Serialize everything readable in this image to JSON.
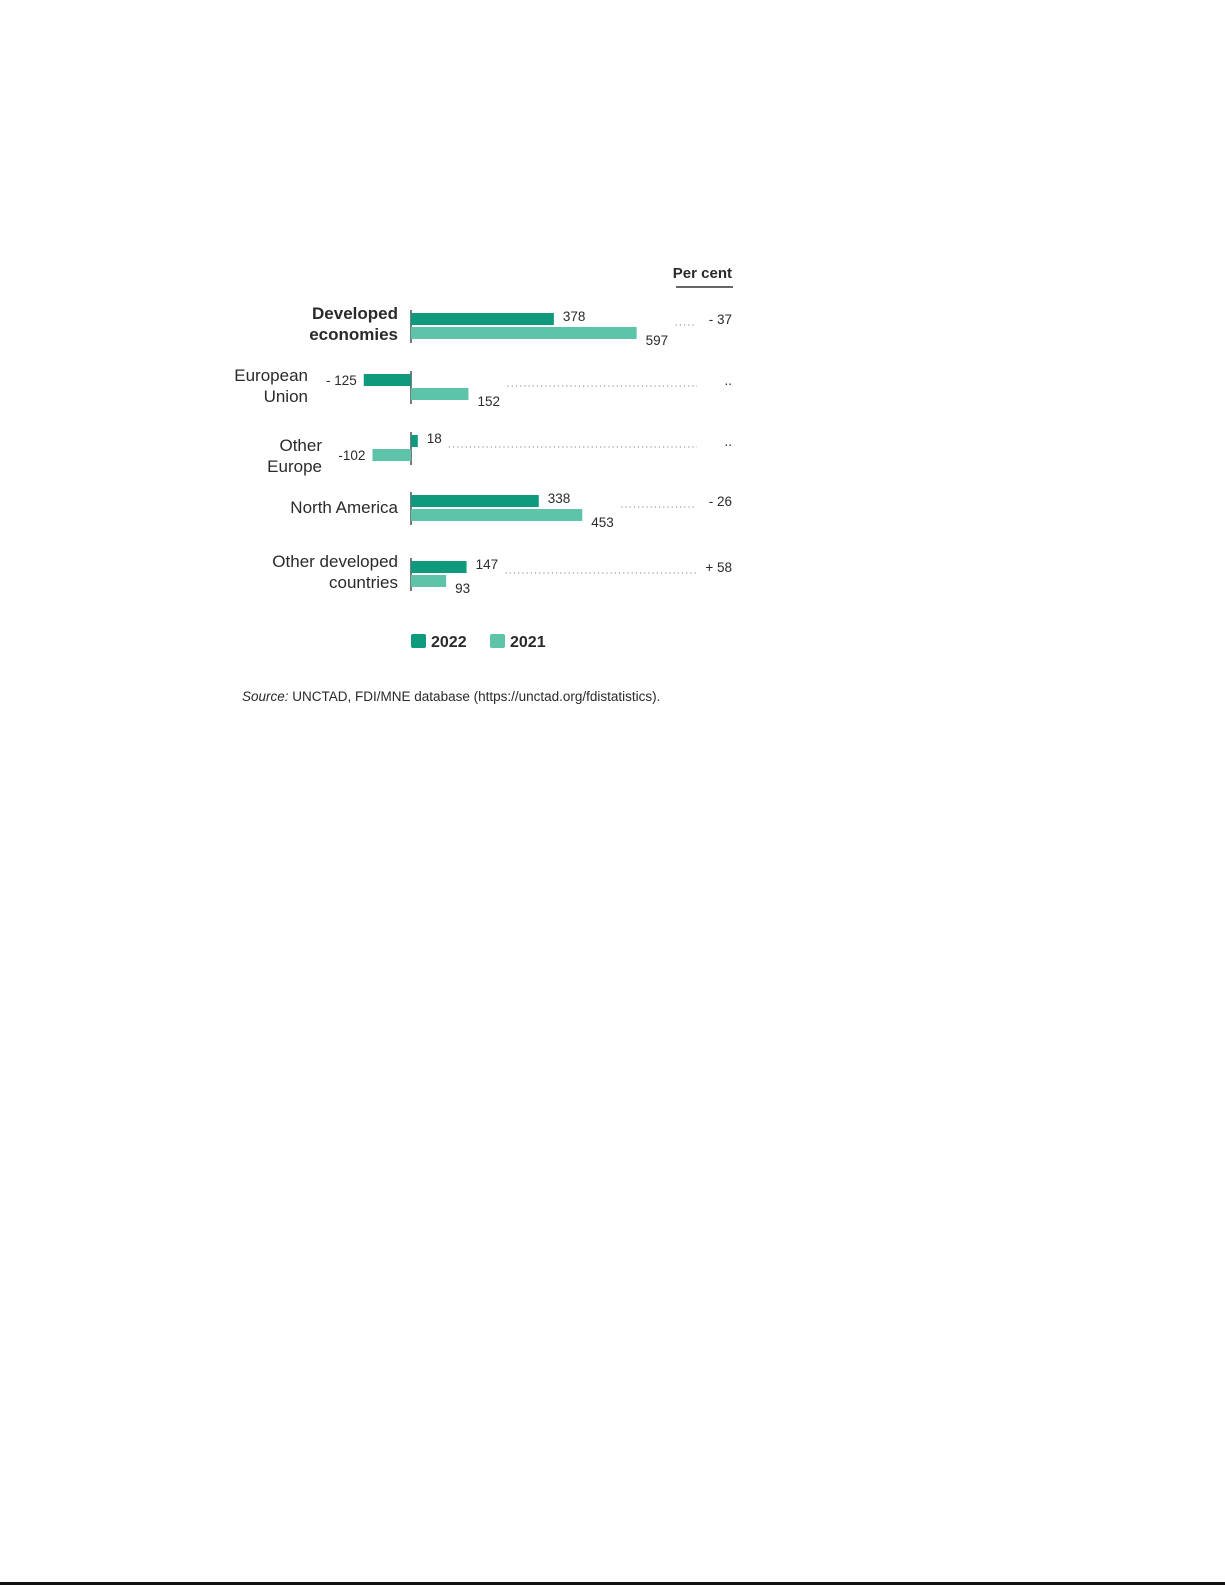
{
  "chart_data": {
    "type": "bar",
    "orientation": "horizontal",
    "categories": [
      "Developed economies",
      "European Union",
      "Other Europe",
      "North America",
      "Other developed countries"
    ],
    "series": [
      {
        "name": "2022",
        "values": [
          378,
          -125,
          18,
          338,
          147
        ],
        "labels": [
          "378",
          "- 125",
          "18",
          "338",
          "147"
        ],
        "color": "#0f9a7d"
      },
      {
        "name": "2021",
        "values": [
          597,
          152,
          -102,
          453,
          93
        ],
        "labels": [
          "597",
          "152",
          "-102",
          "453",
          "93"
        ],
        "color": "#5ec4a9"
      }
    ],
    "percent_column_header": "Per cent",
    "percent_change": [
      "- 37",
      "..",
      "..",
      "- 26",
      "+ 58"
    ],
    "legend": [
      "2022",
      "2021"
    ],
    "legend_position": "bottom",
    "grid": false
  },
  "source_label": "Source:",
  "source_text": "UNCTAD, FDI/MNE database (https://unctad.org/fdistatistics)."
}
